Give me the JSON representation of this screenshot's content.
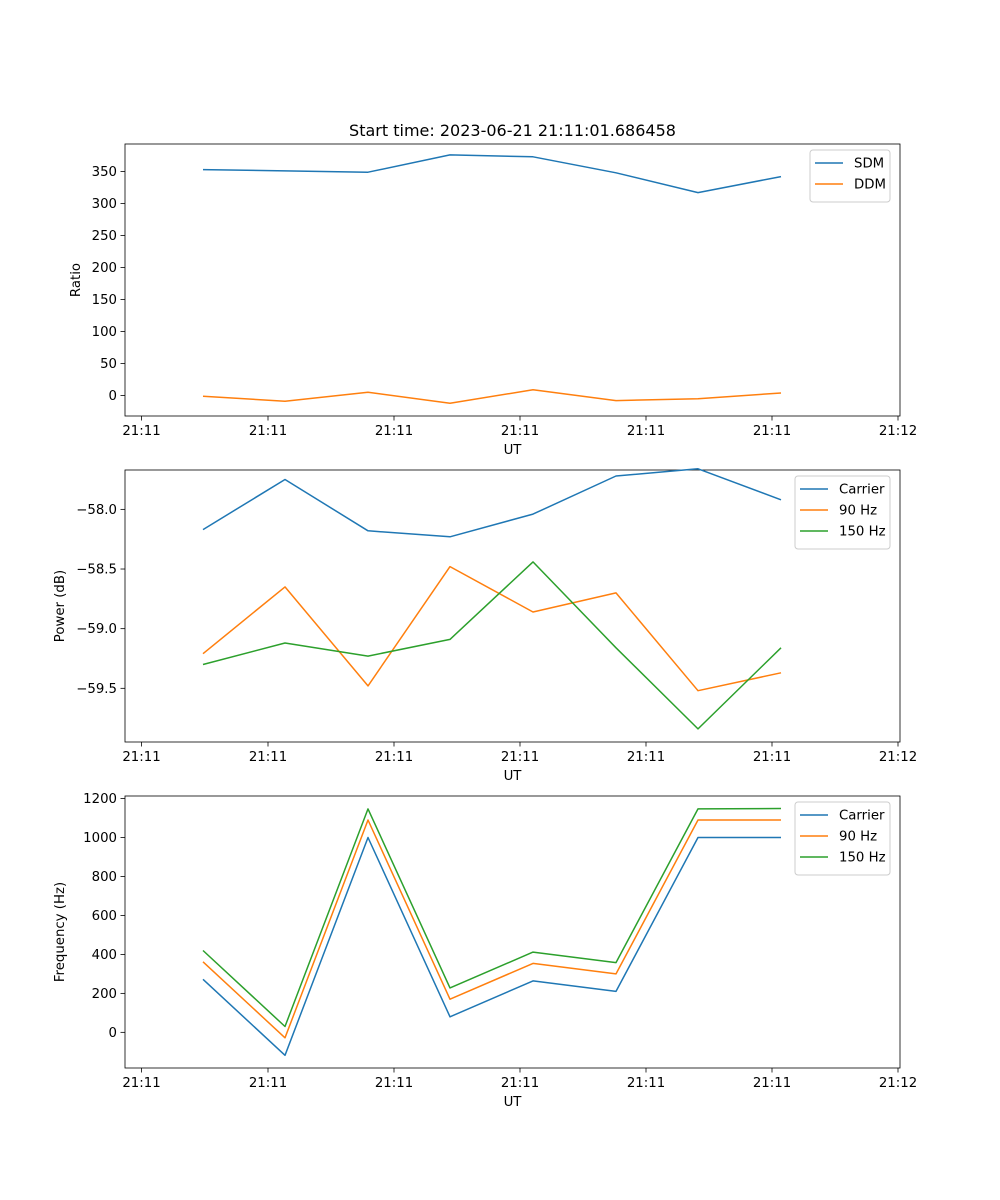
{
  "title": "Start time: 2023-06-21 21:11:01.686458",
  "chart_data": [
    {
      "type": "line",
      "title": "Start time: 2023-06-21 21:11:01.686458",
      "xlabel": "UT",
      "ylabel": "Ratio",
      "x_ticks": [
        "21:11",
        "21:11",
        "21:11",
        "21:11",
        "21:11",
        "21:11",
        "21:12"
      ],
      "y_ticks": [
        0,
        50,
        100,
        150,
        200,
        250,
        300,
        350
      ],
      "ylim": [
        -32,
        393
      ],
      "legend_position": "top-right",
      "series": [
        {
          "name": "SDM",
          "color": "#1f77b4",
          "values": [
            353,
            351,
            349,
            376,
            373,
            348,
            317,
            342
          ]
        },
        {
          "name": "DDM",
          "color": "#ff7f0e",
          "values": [
            -1,
            -9,
            5,
            -12,
            9,
            -8,
            -5,
            4
          ]
        }
      ]
    },
    {
      "type": "line",
      "xlabel": "UT",
      "ylabel": "Power (dB)",
      "x_ticks": [
        "21:11",
        "21:11",
        "21:11",
        "21:11",
        "21:11",
        "21:11",
        "21:12"
      ],
      "y_ticks": [
        "-58.0",
        "-58.5",
        "-59.0",
        "-59.5"
      ],
      "y_tick_values": [
        -58.0,
        -58.5,
        -59.0,
        -59.5
      ],
      "ylim": [
        -59.95,
        -57.67
      ],
      "legend_position": "top-right",
      "series": [
        {
          "name": "Carrier",
          "color": "#1f77b4",
          "values": [
            -58.17,
            -57.75,
            -58.18,
            -58.23,
            -58.04,
            -57.72,
            -57.66,
            -57.92
          ]
        },
        {
          "name": "90 Hz",
          "color": "#ff7f0e",
          "values": [
            -59.21,
            -58.65,
            -59.48,
            -58.48,
            -58.86,
            -58.7,
            -59.52,
            -59.37
          ]
        },
        {
          "name": "150 Hz",
          "color": "#2ca02c",
          "values": [
            -59.3,
            -59.12,
            -59.23,
            -59.09,
            -58.44,
            -59.16,
            -59.84,
            -59.16
          ]
        }
      ]
    },
    {
      "type": "line",
      "xlabel": "UT",
      "ylabel": "Frequency (Hz)",
      "x_ticks": [
        "21:11",
        "21:11",
        "21:11",
        "21:11",
        "21:11",
        "21:11",
        "21:12"
      ],
      "y_ticks": [
        0,
        200,
        400,
        600,
        800,
        1000,
        1200
      ],
      "ylim": [
        -183,
        1213
      ],
      "legend_position": "top-right",
      "series": [
        {
          "name": "Carrier",
          "color": "#1f77b4",
          "values": [
            272,
            -118,
            1000,
            80,
            264,
            210,
            1000,
            1000
          ]
        },
        {
          "name": "90 Hz",
          "color": "#ff7f0e",
          "values": [
            362,
            -28,
            1090,
            170,
            354,
            300,
            1090,
            1090
          ]
        },
        {
          "name": "150 Hz",
          "color": "#2ca02c",
          "values": [
            420,
            30,
            1147,
            228,
            412,
            358,
            1147,
            1149
          ]
        }
      ]
    }
  ]
}
